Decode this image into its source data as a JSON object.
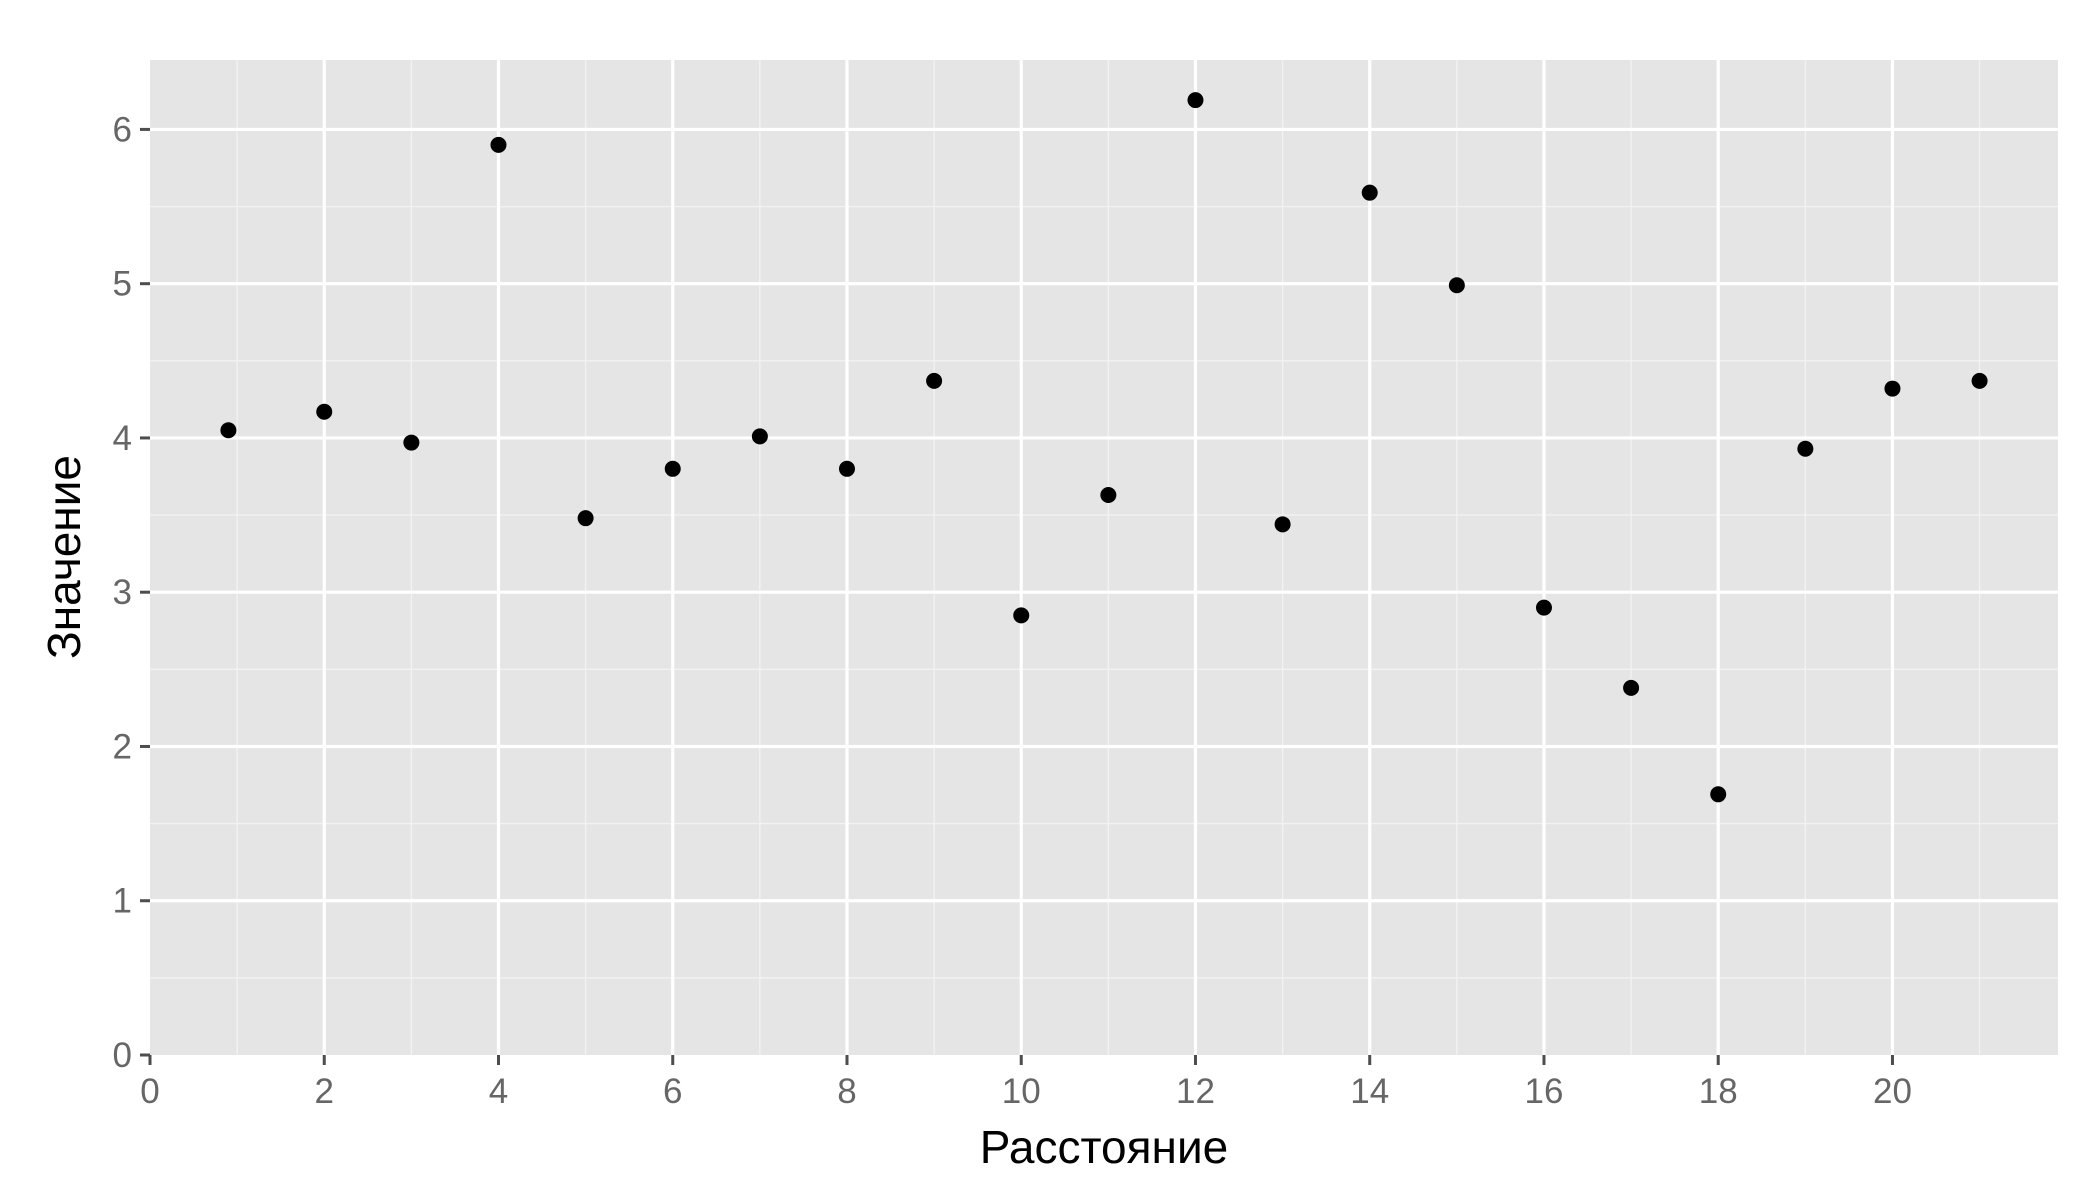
{
  "chart_data": {
    "type": "scatter",
    "title": "",
    "xlabel": "Расстояние",
    "ylabel": "Значение",
    "xlim": [
      0,
      21.9
    ],
    "ylim": [
      0,
      6.45
    ],
    "x_ticks": [
      0,
      2,
      4,
      6,
      8,
      10,
      12,
      14,
      16,
      18,
      20
    ],
    "y_ticks": [
      0,
      1,
      2,
      3,
      4,
      5,
      6
    ],
    "x_tick_labels": [
      "0",
      "2",
      "4",
      "6",
      "8",
      "10",
      "12",
      "14",
      "16",
      "18",
      "20"
    ],
    "y_tick_labels": [
      "0",
      "1",
      "2",
      "3",
      "4",
      "5",
      "6"
    ],
    "grid": true,
    "background": "#e5e5e5",
    "point_color": "#000000",
    "series": [
      {
        "points": [
          {
            "x": 0.9,
            "y": 4.05
          },
          {
            "x": 2,
            "y": 4.17
          },
          {
            "x": 3,
            "y": 3.97
          },
          {
            "x": 4,
            "y": 5.9
          },
          {
            "x": 5,
            "y": 3.48
          },
          {
            "x": 6,
            "y": 3.8
          },
          {
            "x": 7,
            "y": 4.01
          },
          {
            "x": 8,
            "y": 3.8
          },
          {
            "x": 9,
            "y": 4.37
          },
          {
            "x": 10,
            "y": 2.85
          },
          {
            "x": 11,
            "y": 3.63
          },
          {
            "x": 12,
            "y": 6.19
          },
          {
            "x": 13,
            "y": 3.44
          },
          {
            "x": 14,
            "y": 5.59
          },
          {
            "x": 15,
            "y": 4.99
          },
          {
            "x": 16,
            "y": 2.9
          },
          {
            "x": 17,
            "y": 2.38
          },
          {
            "x": 18,
            "y": 1.69
          },
          {
            "x": 19,
            "y": 3.93
          },
          {
            "x": 20,
            "y": 4.32
          },
          {
            "x": 21,
            "y": 4.37
          }
        ]
      }
    ]
  }
}
